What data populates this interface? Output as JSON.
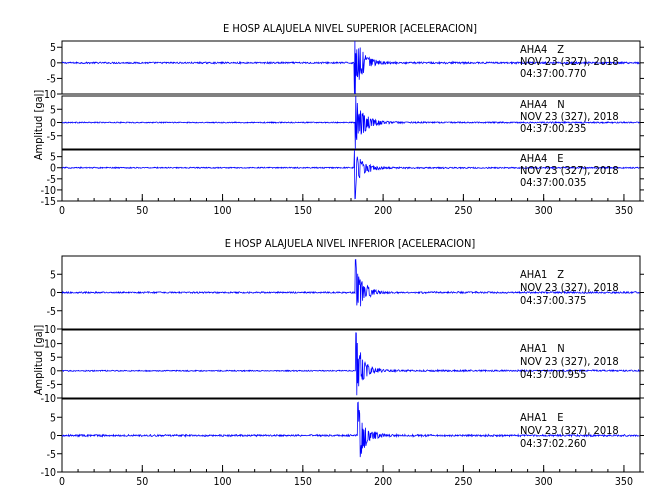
{
  "chart_data": [
    {
      "type": "line",
      "title": "E HOSP ALAJUELA NIVEL SUPERIOR [ACELERACION]",
      "xlabel": "",
      "ylabel": "Amplitud [gal]",
      "xlim": [
        0,
        360
      ],
      "x_ticks": [
        "0",
        "50",
        "100",
        "150",
        "200",
        "250",
        "300",
        "350"
      ],
      "grid": false,
      "trace_color": "#0000ff",
      "traces": [
        {
          "station": "AHA4",
          "component": "Z",
          "date": "NOV 23 (327), 2018",
          "time": "04:37:00.770",
          "ylim": [
            -10,
            7
          ],
          "y_ticks": [
            {
              "v": 5,
              "label": "5"
            },
            {
              "v": 0,
              "label": "0"
            },
            {
              "v": -5,
              "label": "-5"
            },
            {
              "v": -10,
              "label": "-10"
            }
          ],
          "onset": 182.0,
          "peak_pos": 10.0,
          "peak_neg": -10.0,
          "noise": 0.25,
          "duration": 20
        },
        {
          "station": "AHA4",
          "component": "N",
          "date": "NOV 23 (327), 2018",
          "time": "04:37:00.235",
          "ylim": [
            -10,
            10
          ],
          "y_ticks": [
            {
              "v": 5,
              "label": "5"
            },
            {
              "v": 0,
              "label": "0"
            },
            {
              "v": -5,
              "label": "-5"
            }
          ],
          "onset": 182.5,
          "peak_pos": 10.0,
          "peak_neg": -10.0,
          "noise": 0.2,
          "duration": 22
        },
        {
          "station": "AHA4",
          "component": "E",
          "date": "NOV 23 (327), 2018",
          "time": "04:37:00.035",
          "ylim": [
            -15,
            8
          ],
          "y_ticks": [
            {
              "v": 5,
              "label": "5"
            },
            {
              "v": 0,
              "label": "0"
            },
            {
              "v": -5,
              "label": "-5"
            },
            {
              "v": -10,
              "label": "-10"
            },
            {
              "v": -15,
              "label": "-15"
            }
          ],
          "onset": 182.0,
          "peak_pos": 8.0,
          "peak_neg": -14.0,
          "noise": 0.25,
          "duration": 20
        }
      ]
    },
    {
      "type": "line",
      "title": "E HOSP ALAJUELA NIVEL INFERIOR [ACELERACION]",
      "xlabel": "",
      "ylabel": "Amplitud [gal]",
      "xlim": [
        0,
        360
      ],
      "x_ticks": [
        "0",
        "50",
        "100",
        "150",
        "200",
        "250",
        "300",
        "350"
      ],
      "grid": false,
      "trace_color": "#0000ff",
      "traces": [
        {
          "station": "AHA1",
          "component": "Z",
          "date": "NOV 23 (327), 2018",
          "time": "04:37:00.375",
          "ylim": [
            -10,
            10
          ],
          "y_ticks": [
            {
              "v": 5,
              "label": "5"
            },
            {
              "v": 0,
              "label": "0"
            },
            {
              "v": -5,
              "label": "-5"
            },
            {
              "v": -10,
              "label": "-10"
            }
          ],
          "onset": 182.5,
          "peak_pos": 9.0,
          "peak_neg": -8.0,
          "noise": 0.2,
          "duration": 18
        },
        {
          "station": "AHA1",
          "component": "N",
          "date": "NOV 23 (327), 2018",
          "time": "04:37:00.955",
          "ylim": [
            -10,
            15
          ],
          "y_ticks": [
            {
              "v": 10,
              "label": "10"
            },
            {
              "v": 5,
              "label": "5"
            },
            {
              "v": 0,
              "label": "0"
            },
            {
              "v": -5,
              "label": "-5"
            },
            {
              "v": -10,
              "label": "-10"
            }
          ],
          "onset": 183.0,
          "peak_pos": 14.0,
          "peak_neg": -9.0,
          "noise": 0.2,
          "duration": 18
        },
        {
          "station": "AHA1",
          "component": "E",
          "date": "NOV 23 (327), 2018",
          "time": "04:37:02.260",
          "ylim": [
            -10,
            10
          ],
          "y_ticks": [
            {
              "v": 5,
              "label": "5"
            },
            {
              "v": 0,
              "label": "0"
            },
            {
              "v": -5,
              "label": "-5"
            },
            {
              "v": -10,
              "label": "-10"
            }
          ],
          "onset": 184.0,
          "peak_pos": 9.0,
          "peak_neg": -9.0,
          "noise": 0.25,
          "duration": 18
        }
      ]
    }
  ]
}
